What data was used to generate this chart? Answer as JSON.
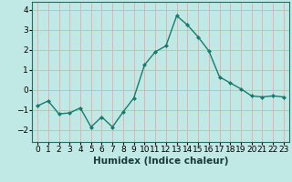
{
  "x": [
    0,
    1,
    2,
    3,
    4,
    5,
    6,
    7,
    8,
    9,
    10,
    11,
    12,
    13,
    14,
    15,
    16,
    17,
    18,
    19,
    20,
    21,
    22,
    23
  ],
  "y": [
    -0.8,
    -0.55,
    -1.2,
    -1.15,
    -0.9,
    -1.85,
    -1.35,
    -1.85,
    -1.1,
    -0.4,
    1.25,
    1.9,
    2.2,
    3.7,
    3.25,
    2.65,
    1.95,
    0.65,
    0.35,
    0.05,
    -0.3,
    -0.35,
    -0.3,
    -0.35
  ],
  "line_color": "#1a7a6e",
  "marker": "D",
  "marker_size": 2.0,
  "linewidth": 1.0,
  "bg_color": "#c0e8e4",
  "grid_color": "#e8aaaa",
  "xlabel": "Humidex (Indice chaleur)",
  "ylim": [
    -2.6,
    4.4
  ],
  "xlim": [
    -0.5,
    23.5
  ],
  "yticks": [
    -2,
    -1,
    0,
    1,
    2,
    3,
    4
  ],
  "xtick_labels": [
    "0",
    "1",
    "2",
    "3",
    "4",
    "5",
    "6",
    "7",
    "8",
    "9",
    "10",
    "11",
    "12",
    "13",
    "14",
    "15",
    "16",
    "17",
    "18",
    "19",
    "20",
    "21",
    "22",
    "23"
  ],
  "xlabel_fontsize": 7.5,
  "tick_fontsize": 6.5,
  "spine_color": "#2a6a64"
}
